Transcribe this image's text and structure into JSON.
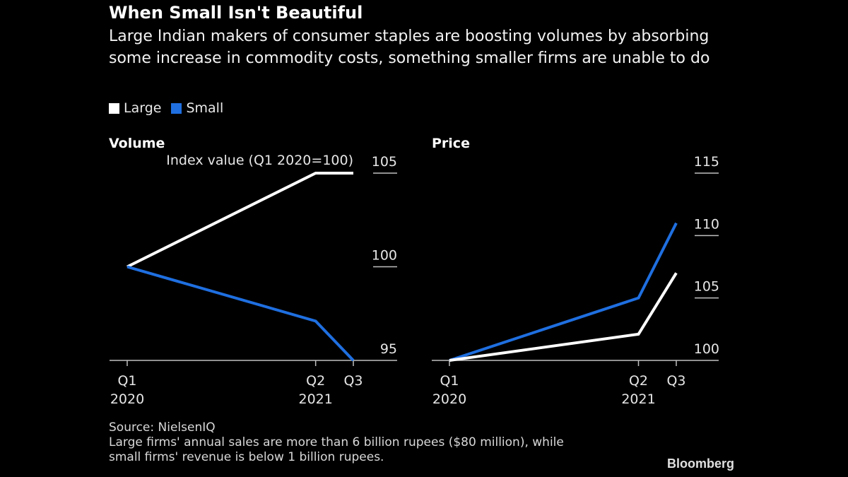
{
  "header": {
    "title": "When Small Isn't Beautiful",
    "subtitle": "Large Indian makers of consumer staples are boosting volumes by absorbing some increase in commodity costs, something smaller firms are unable to do"
  },
  "legend": [
    {
      "label": "Large",
      "color": "#ffffff"
    },
    {
      "label": "Small",
      "color": "#1f6fe0"
    }
  ],
  "footer": {
    "source": "Source: NielsenIQ",
    "note_line1": "Large firms' annual sales are more than 6 billion rupees ($80 million), while",
    "note_line2": "small firms' revenue is below 1 billion rupees.",
    "brand": "Bloomberg"
  },
  "chart_data": [
    {
      "type": "line",
      "title": "Volume",
      "ylabel": "Index value (Q1 2020=100)",
      "x": [
        "Q1 2020",
        "Q2 2021",
        "Q3 2021"
      ],
      "x_quarter_index": [
        0,
        5,
        6
      ],
      "x_tick_labels": [
        [
          "Q1",
          "2020"
        ],
        [
          "Q2",
          "2021"
        ],
        [
          "Q3",
          ""
        ]
      ],
      "ylim": [
        95,
        105
      ],
      "yticks": [
        95,
        100,
        105
      ],
      "series": [
        {
          "name": "Large",
          "values": [
            100,
            105,
            105
          ]
        },
        {
          "name": "Small",
          "values": [
            100,
            97.1,
            95
          ]
        }
      ]
    },
    {
      "type": "line",
      "title": "Price",
      "ylabel": "",
      "x": [
        "Q1 2020",
        "Q2 2021",
        "Q3 2021"
      ],
      "x_quarter_index": [
        0,
        5,
        6
      ],
      "x_tick_labels": [
        [
          "Q1",
          "2020"
        ],
        [
          "Q2",
          "2021"
        ],
        [
          "Q3",
          ""
        ]
      ],
      "ylim": [
        100,
        115
      ],
      "yticks": [
        100,
        105,
        110,
        115
      ],
      "series": [
        {
          "name": "Large",
          "values": [
            100,
            102.1,
            107
          ]
        },
        {
          "name": "Small",
          "values": [
            100,
            105,
            111
          ]
        }
      ]
    }
  ]
}
